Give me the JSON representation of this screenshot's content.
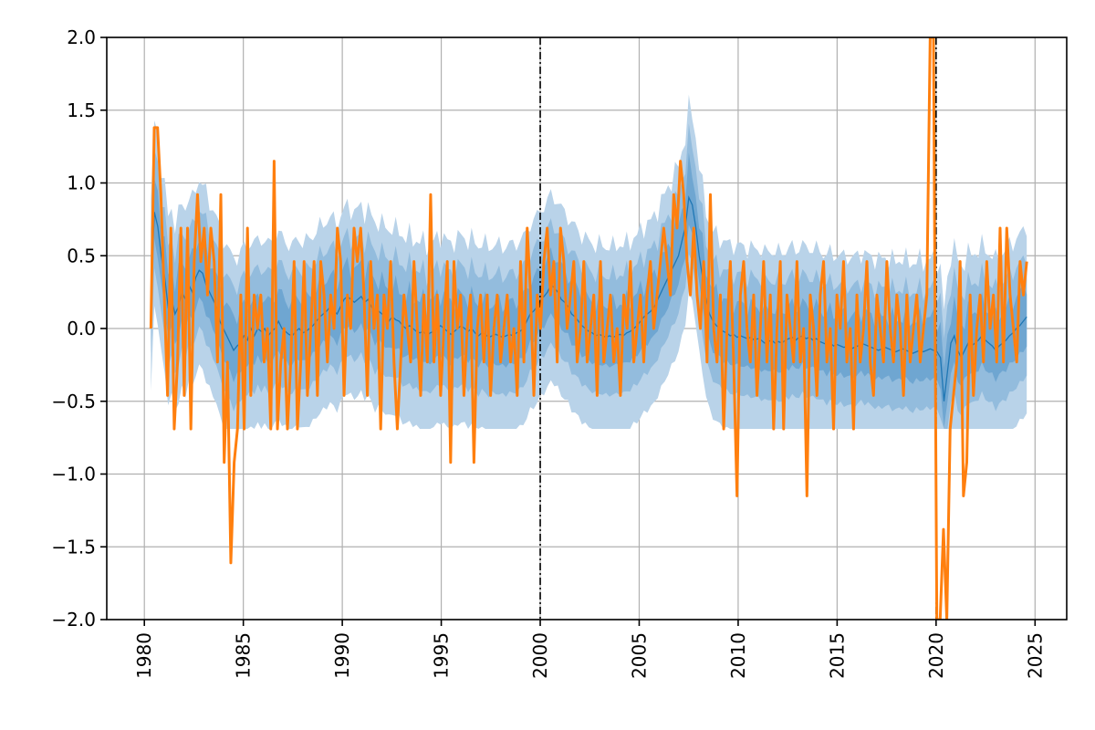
{
  "chart_data": {
    "type": "line",
    "title": "",
    "xlabel": "",
    "ylabel": "",
    "xlim": [
      1978.1,
      2026.6
    ],
    "ylim": [
      -2.0,
      2.0
    ],
    "grid": true,
    "legend": "none",
    "x_ticks": [
      1980,
      1985,
      1990,
      1995,
      2000,
      2005,
      2010,
      2015,
      2020,
      2025
    ],
    "x_tick_labels": [
      "1980",
      "1985",
      "1990",
      "1995",
      "2000",
      "2005",
      "2010",
      "2015",
      "2020",
      "2025"
    ],
    "y_ticks": [
      -2.0,
      -1.5,
      -1.0,
      -0.5,
      0.0,
      0.5,
      1.0,
      1.5,
      2.0
    ],
    "y_tick_labels": [
      "−2.0",
      "−1.5",
      "−1.0",
      "−0.5",
      "0.0",
      "0.5",
      "1.0",
      "1.5",
      "2.0"
    ],
    "vertical_lines": [
      {
        "x": 2000.0,
        "style": "dash-dot",
        "color": "#000000"
      },
      {
        "x": 2020.0,
        "style": "dash-dot",
        "color": "#000000"
      }
    ],
    "x_start": 1980.33,
    "x_end": 2024.58,
    "colors": {
      "observed": "#ff7f0e",
      "median": "#1f77b4",
      "band_outer": "#b9d3e9",
      "band_mid": "#93bcdd",
      "band_inner": "#6fa6d1"
    },
    "series": [
      {
        "kind": "observed",
        "values": [
          0.0,
          1.38,
          1.38,
          0.92,
          0.23,
          -0.46,
          0.69,
          -0.69,
          -0.23,
          0.69,
          -0.46,
          0.69,
          -0.69,
          0.46,
          0.92,
          0.46,
          0.69,
          0.23,
          0.69,
          0.46,
          -0.23,
          0.92,
          -0.92,
          -0.23,
          -1.61,
          -0.92,
          -0.69,
          0.23,
          -0.69,
          0.69,
          -0.46,
          0.23,
          0.0,
          0.23,
          -0.23,
          0.0,
          -0.69,
          1.15,
          -0.69,
          -0.23,
          0.0,
          -0.69,
          -0.23,
          0.46,
          -0.69,
          -0.23,
          0.46,
          -0.46,
          0.0,
          0.46,
          -0.46,
          0.46,
          0.23,
          -0.23,
          0.23,
          0.0,
          0.69,
          0.46,
          -0.46,
          0.23,
          0.0,
          0.69,
          0.46,
          0.69,
          0.23,
          -0.46,
          0.46,
          0.0,
          0.23,
          -0.69,
          0.23,
          0.0,
          0.46,
          -0.23,
          -0.69,
          -0.23,
          0.23,
          0.0,
          -0.23,
          0.46,
          0.0,
          -0.46,
          0.23,
          -0.23,
          0.92,
          -0.23,
          0.23,
          -0.46,
          0.0,
          0.46,
          -0.92,
          0.46,
          0.0,
          0.23,
          -0.46,
          0.0,
          0.23,
          -0.92,
          0.0,
          0.23,
          -0.23,
          0.23,
          -0.46,
          0.0,
          0.23,
          -0.23,
          0.0,
          0.23,
          -0.23,
          0.0,
          -0.46,
          0.46,
          -0.23,
          0.69,
          0.23,
          -0.46,
          0.23,
          0.0,
          0.46,
          0.69,
          0.23,
          0.46,
          -0.23,
          0.69,
          0.46,
          0.0,
          0.23,
          0.46,
          -0.23,
          0.0,
          0.46,
          -0.23,
          0.0,
          0.23,
          -0.46,
          0.46,
          -0.23,
          0.0,
          0.23,
          -0.23,
          0.0,
          -0.46,
          0.23,
          0.0,
          0.46,
          -0.23,
          0.0,
          0.23,
          -0.23,
          0.23,
          0.46,
          0.0,
          0.23,
          0.46,
          0.69,
          0.46,
          0.23,
          0.92,
          0.69,
          1.15,
          0.92,
          0.46,
          0.23,
          0.69,
          0.23,
          0.0,
          0.46,
          -0.23,
          0.92,
          0.0,
          -0.23,
          0.23,
          -0.69,
          0.0,
          0.46,
          -0.23,
          -1.15,
          0.23,
          0.46,
          0.0,
          -0.23,
          0.23,
          -0.46,
          0.0,
          0.46,
          -0.23,
          0.23,
          -0.69,
          0.0,
          0.46,
          -0.69,
          0.23,
          0.0,
          -0.23,
          0.46,
          -0.23,
          0.0,
          -1.15,
          0.23,
          0.0,
          -0.46,
          0.23,
          0.46,
          -0.23,
          0.0,
          -0.69,
          0.23,
          0.0,
          0.46,
          -0.23,
          0.0,
          -0.69,
          0.23,
          -0.23,
          0.0,
          0.46,
          -0.23,
          -0.46,
          0.23,
          0.0,
          -0.23,
          0.46,
          0.0,
          -0.23,
          0.23,
          0.0,
          -0.46,
          0.23,
          -0.23,
          0.0,
          0.23,
          -0.23,
          0.0,
          0.23,
          2.0,
          2.0,
          -2.0,
          -2.0,
          -1.38,
          -2.0,
          -0.69,
          -0.46,
          -0.23,
          0.46,
          -1.15,
          -0.92,
          0.23,
          -0.46,
          0.0,
          0.23,
          -0.23,
          0.46,
          0.0,
          0.23,
          -0.23,
          0.69,
          -0.23,
          0.69,
          0.23,
          0.0,
          -0.23,
          0.46,
          0.23,
          0.46
        ]
      },
      {
        "kind": "median",
        "values": [
          0.23,
          0.8,
          0.7,
          0.5,
          0.35,
          0.15,
          0.2,
          0.1,
          0.15,
          0.25,
          0.2,
          0.3,
          0.25,
          0.35,
          0.4,
          0.38,
          0.3,
          0.25,
          0.2,
          0.15,
          0.05,
          0.0,
          -0.05,
          -0.1,
          -0.15,
          -0.12,
          -0.1,
          -0.05,
          -0.08,
          0.0,
          -0.05,
          0.0,
          -0.02,
          0.0,
          -0.05,
          -0.02,
          0.0,
          0.05,
          0.0,
          -0.02,
          -0.04,
          -0.05,
          -0.02,
          0.0,
          -0.03,
          -0.02,
          0.0,
          0.02,
          0.05,
          0.08,
          0.1,
          0.12,
          0.15,
          0.12,
          0.1,
          0.15,
          0.2,
          0.22,
          0.2,
          0.18,
          0.2,
          0.22,
          0.18,
          0.2,
          0.15,
          0.1,
          0.12,
          0.1,
          0.08,
          0.05,
          0.08,
          0.06,
          0.05,
          0.02,
          0.0,
          0.02,
          0.0,
          -0.02,
          -0.03,
          -0.02,
          -0.05,
          -0.03,
          -0.02,
          0.0,
          0.02,
          0.0,
          -0.02,
          -0.04,
          -0.02,
          0.0,
          0.02,
          0.0,
          -0.02,
          0.0,
          -0.03,
          -0.05,
          -0.03,
          -0.04,
          -0.06,
          -0.05,
          -0.04,
          -0.05,
          -0.06,
          -0.05,
          -0.04,
          -0.05,
          -0.03,
          -0.02,
          0.0,
          0.05,
          0.1,
          0.12,
          0.15,
          0.2,
          0.22,
          0.25,
          0.3,
          0.28,
          0.25,
          0.2,
          0.18,
          0.15,
          0.1,
          0.08,
          0.05,
          0.02,
          0.0,
          -0.02,
          -0.03,
          -0.05,
          -0.04,
          -0.05,
          -0.06,
          -0.05,
          -0.06,
          -0.05,
          -0.04,
          -0.05,
          -0.03,
          -0.02,
          0.0,
          0.02,
          0.05,
          0.08,
          0.1,
          0.12,
          0.15,
          0.2,
          0.25,
          0.3,
          0.35,
          0.4,
          0.45,
          0.5,
          0.6,
          0.7,
          0.9,
          0.85,
          0.7,
          0.5,
          0.35,
          0.2,
          0.1,
          0.05,
          0.02,
          0.0,
          -0.02,
          -0.03,
          -0.05,
          -0.04,
          -0.06,
          -0.05,
          -0.06,
          -0.07,
          -0.06,
          -0.08,
          -0.07,
          -0.08,
          -0.1,
          -0.09,
          -0.08,
          -0.1,
          -0.09,
          -0.1,
          -0.08,
          -0.07,
          -0.06,
          -0.08,
          -0.06,
          -0.05,
          -0.07,
          -0.06,
          -0.08,
          -0.07,
          -0.09,
          -0.1,
          -0.11,
          -0.1,
          -0.12,
          -0.11,
          -0.12,
          -0.13,
          -0.12,
          -0.14,
          -0.13,
          -0.12,
          -0.1,
          -0.11,
          -0.12,
          -0.13,
          -0.14,
          -0.15,
          -0.14,
          -0.13,
          -0.14,
          -0.15,
          -0.16,
          -0.15,
          -0.14,
          -0.15,
          -0.16,
          -0.17,
          -0.16,
          -0.15,
          -0.16,
          -0.15,
          -0.14,
          -0.15,
          -0.16,
          -0.2,
          -0.5,
          -0.3,
          -0.1,
          -0.05,
          -0.15,
          -0.2,
          -0.15,
          -0.1,
          -0.12,
          -0.1,
          -0.08,
          -0.05,
          -0.08,
          -0.1,
          -0.12,
          -0.15,
          -0.12,
          -0.1,
          -0.08,
          -0.05,
          -0.03,
          0.0,
          0.02,
          0.05,
          0.08
        ]
      }
    ],
    "bands": [
      {
        "name": "outer",
        "low_offset": -0.66,
        "high_offset": 0.62
      },
      {
        "name": "mid",
        "low_offset": -0.4,
        "high_offset": 0.42
      },
      {
        "name": "inner",
        "low_offset": -0.2,
        "high_offset": 0.22
      }
    ]
  }
}
